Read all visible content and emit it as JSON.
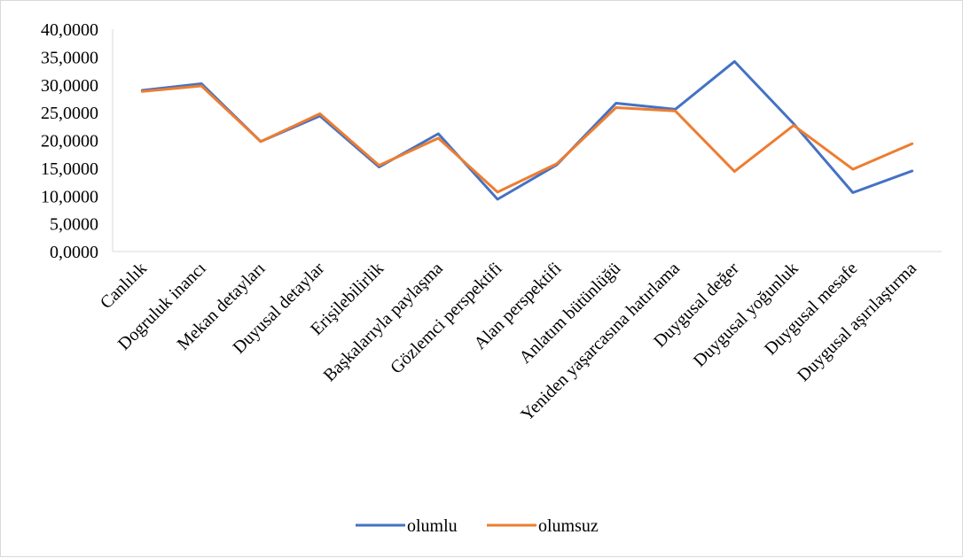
{
  "chart_data": {
    "type": "line",
    "title": "",
    "xlabel": "",
    "ylabel": "",
    "ylim": [
      0,
      40
    ],
    "ytick_step": 5,
    "ytick_labels": [
      "0,0000",
      "5,0000",
      "10,0000",
      "15,0000",
      "20,0000",
      "25,0000",
      "30,0000",
      "35,0000",
      "40,0000"
    ],
    "grid": false,
    "legend_position": "bottom",
    "categories": [
      "Canlılık",
      "Dogruluk inancı",
      "Mekan detayları",
      "Duyusal detaylar",
      "Erişilebilirlik",
      "Başkalarıyla paylaşma",
      "Gözlemci perspektifi",
      "Alan perspektifi",
      "Anlatım bütünlüğü",
      "Yeniden yaşarcasına hatırlama",
      "Duygusal değer",
      "Duygusal yoğunluk",
      "Duygusal mesafe",
      "Duygusal aşırılaştırma"
    ],
    "series": [
      {
        "name": "olumlu",
        "color": "#4472C4",
        "values": [
          29.0,
          30.2,
          19.8,
          24.4,
          15.2,
          21.2,
          9.4,
          15.6,
          26.7,
          25.6,
          34.2,
          23.0,
          10.6,
          14.5
        ]
      },
      {
        "name": "olumsuz",
        "color": "#ED7D31",
        "values": [
          28.8,
          29.8,
          19.8,
          24.8,
          15.5,
          20.4,
          10.7,
          15.8,
          25.9,
          25.3,
          14.4,
          22.7,
          14.8,
          19.4
        ]
      }
    ]
  }
}
